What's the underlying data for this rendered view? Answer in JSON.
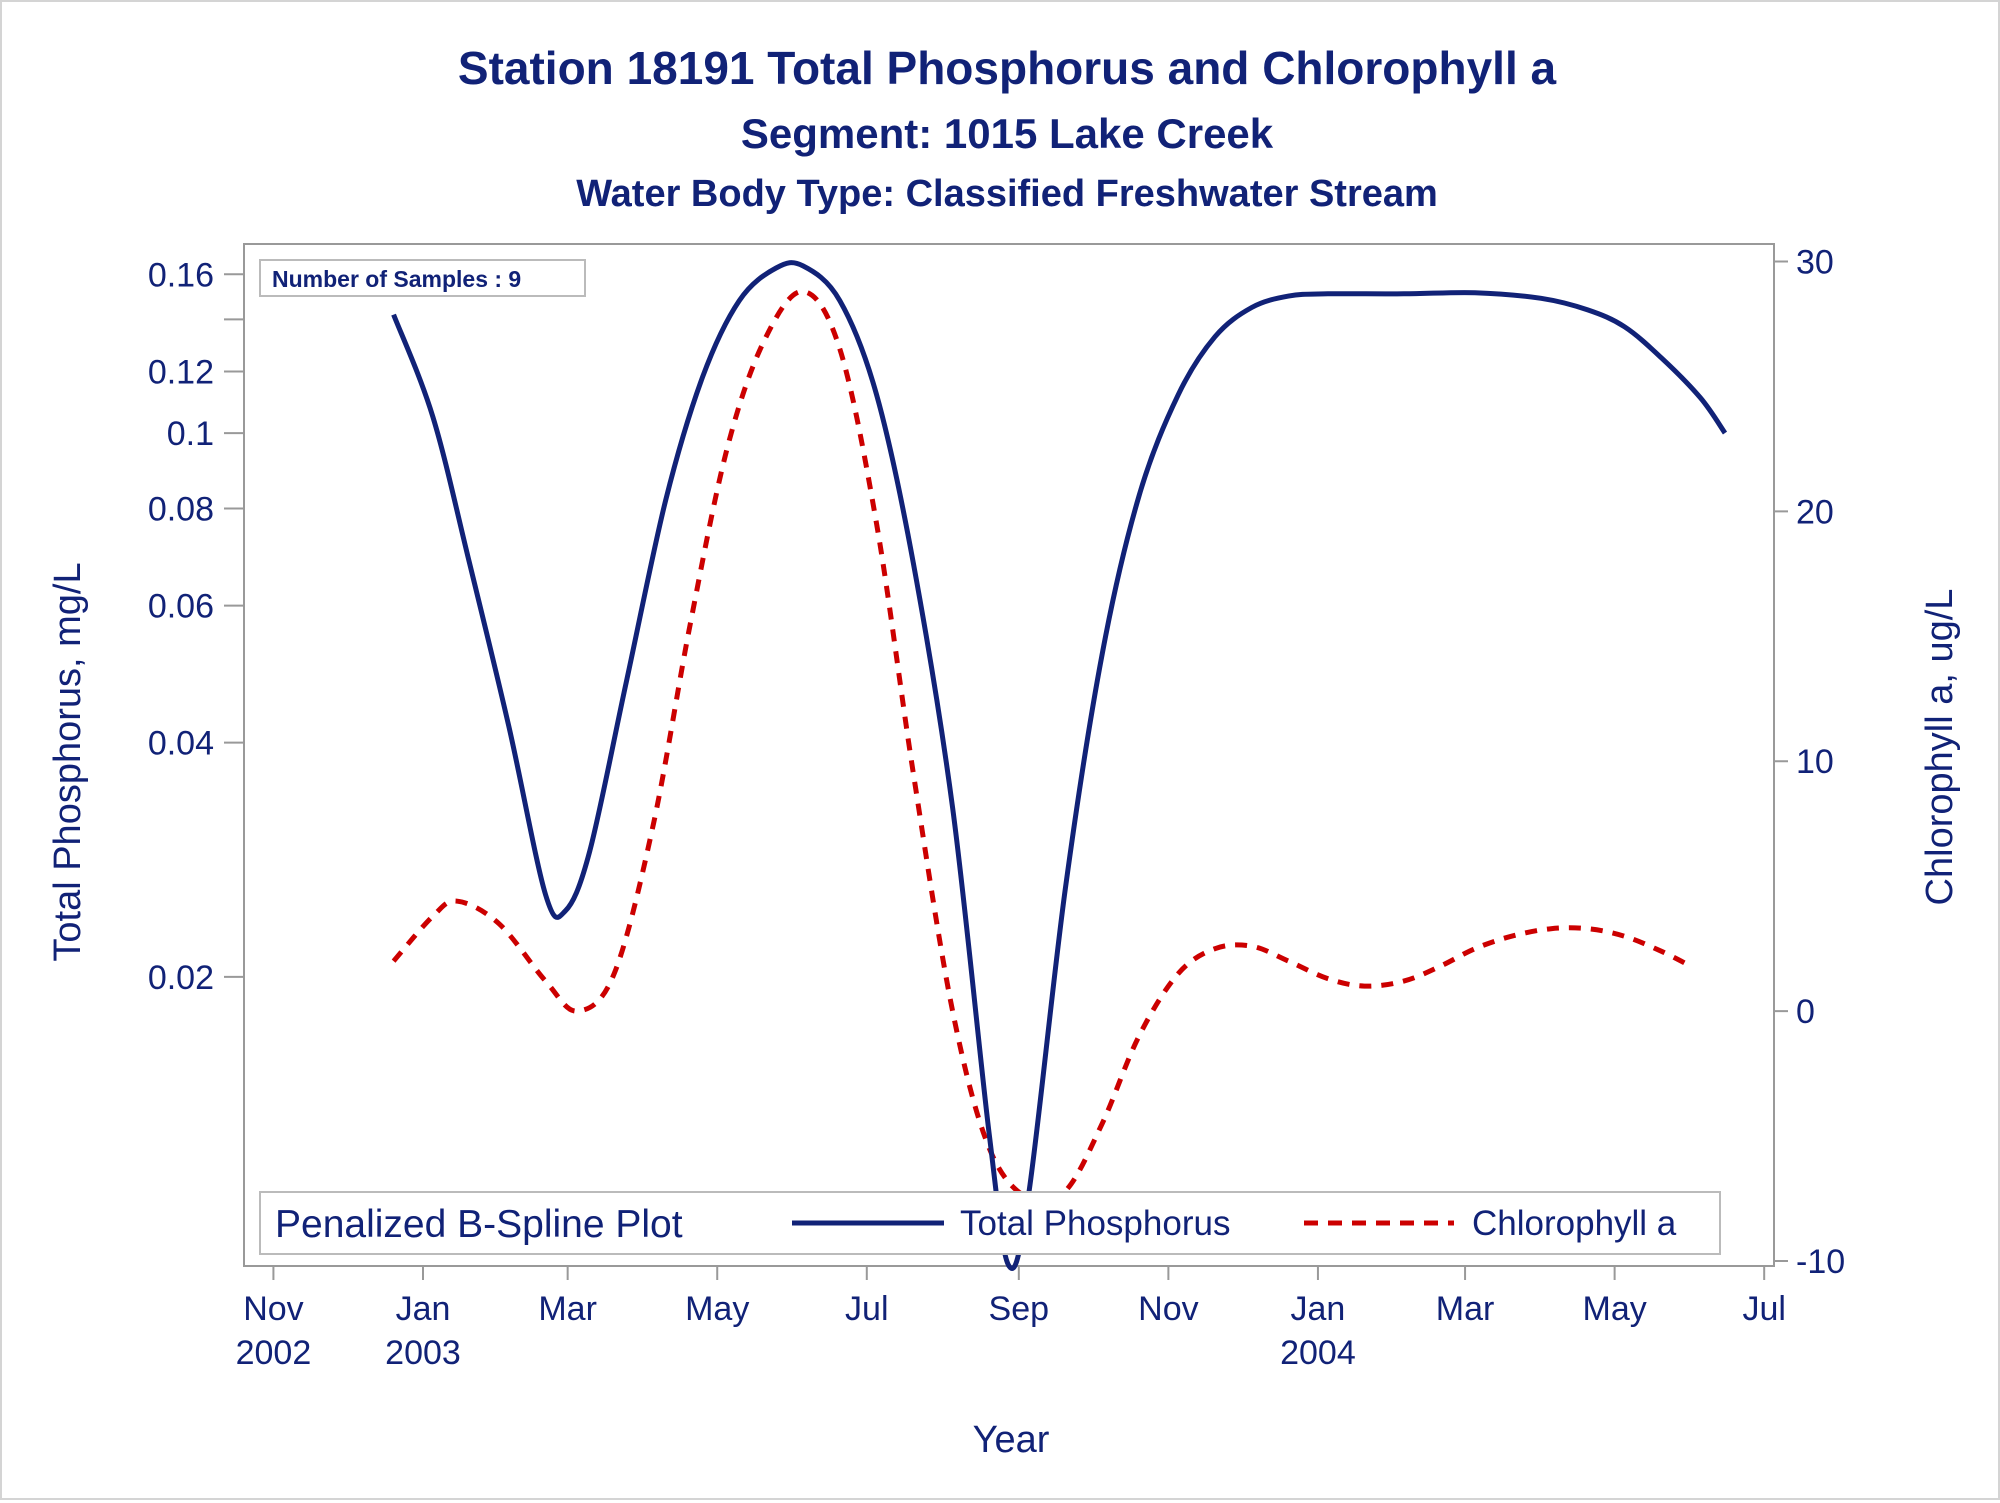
{
  "titles": {
    "line1": "Station 18191  Total Phosphorus and Chlorophyll a",
    "line2": "Segment: 1015  Lake Creek",
    "line3": "Water Body Type: Classified Freshwater Stream"
  },
  "inset_text": "Number of Samples : 9",
  "legend": {
    "title": "Penalized B-Spline Plot",
    "items": [
      {
        "label": "Total Phosphorus",
        "color": "#112277",
        "style": "solid"
      },
      {
        "label": "Chlorophyll a",
        "color": "#cc0000",
        "style": "dashed"
      }
    ]
  },
  "colors": {
    "accent": "#112277",
    "series_tp": "#112277",
    "series_chl": "#cc0000",
    "frame": "#999999"
  },
  "chart_data": {
    "type": "line",
    "xlabel": "Year",
    "ylabel": "Total Phosphorus, mg/L",
    "y2label": "Chlorophyll a, ug/L",
    "x_range": [
      "2002-10-20",
      "2004-07-05"
    ],
    "y_scale": "log",
    "ylim": [
      0.0085,
      0.175
    ],
    "y2lim": [
      -10.2,
      30.7
    ],
    "x_ticks": [
      {
        "date": "2002-11-01",
        "label": "Nov",
        "year": "2002"
      },
      {
        "date": "2003-01-01",
        "label": "Jan",
        "year": "2003"
      },
      {
        "date": "2003-03-01",
        "label": "Mar",
        "year": ""
      },
      {
        "date": "2003-05-01",
        "label": "May",
        "year": ""
      },
      {
        "date": "2003-07-01",
        "label": "Jul",
        "year": ""
      },
      {
        "date": "2003-09-01",
        "label": "Sep",
        "year": ""
      },
      {
        "date": "2003-11-01",
        "label": "Nov",
        "year": ""
      },
      {
        "date": "2004-01-01",
        "label": "Jan",
        "year": "2004"
      },
      {
        "date": "2004-03-01",
        "label": "Mar",
        "year": ""
      },
      {
        "date": "2004-05-01",
        "label": "May",
        "year": ""
      },
      {
        "date": "2004-07-01",
        "label": "Jul",
        "year": ""
      }
    ],
    "y_ticks": [
      {
        "value": 0.02,
        "label": "0.02"
      },
      {
        "value": 0.04,
        "label": "0.04"
      },
      {
        "value": 0.06,
        "label": "0.06"
      },
      {
        "value": 0.08,
        "label": "0.08"
      },
      {
        "value": 0.1,
        "label": "0.1"
      },
      {
        "value": 0.12,
        "label": "0.12"
      },
      {
        "value": 0.14,
        "label": ""
      },
      {
        "value": 0.16,
        "label": "0.16"
      }
    ],
    "y2_ticks": [
      {
        "value": -10,
        "label": "-10"
      },
      {
        "value": 0,
        "label": "0"
      },
      {
        "value": 10,
        "label": "10"
      },
      {
        "value": 20,
        "label": "20"
      },
      {
        "value": 30,
        "label": "30"
      }
    ],
    "series": [
      {
        "name": "Total Phosphorus",
        "axis": "y",
        "points": [
          [
            "2002-12-20",
            0.142
          ],
          [
            "2003-01-05",
            0.105
          ],
          [
            "2003-01-20",
            0.068
          ],
          [
            "2003-02-05",
            0.042
          ],
          [
            "2003-02-20",
            0.0255
          ],
          [
            "2003-02-28",
            0.0243
          ],
          [
            "2003-03-10",
            0.029
          ],
          [
            "2003-03-25",
            0.048
          ],
          [
            "2003-04-10",
            0.082
          ],
          [
            "2003-04-25",
            0.118
          ],
          [
            "2003-05-10",
            0.148
          ],
          [
            "2003-05-25",
            0.163
          ],
          [
            "2003-06-05",
            0.164
          ],
          [
            "2003-06-20",
            0.148
          ],
          [
            "2003-07-05",
            0.112
          ],
          [
            "2003-07-20",
            0.068
          ],
          [
            "2003-08-05",
            0.033
          ],
          [
            "2003-08-20",
            0.0125
          ],
          [
            "2003-08-28",
            0.0085
          ],
          [
            "2003-09-05",
            0.0105
          ],
          [
            "2003-09-20",
            0.026
          ],
          [
            "2003-10-05",
            0.052
          ],
          [
            "2003-10-20",
            0.083
          ],
          [
            "2003-11-05",
            0.112
          ],
          [
            "2003-11-20",
            0.133
          ],
          [
            "2003-12-05",
            0.145
          ],
          [
            "2003-12-20",
            0.15
          ],
          [
            "2004-01-05",
            0.151
          ],
          [
            "2004-02-05",
            0.151
          ],
          [
            "2004-03-05",
            0.1515
          ],
          [
            "2004-04-01",
            0.149
          ],
          [
            "2004-04-20",
            0.144
          ],
          [
            "2004-05-05",
            0.137
          ],
          [
            "2004-05-20",
            0.125
          ],
          [
            "2004-06-05",
            0.111
          ],
          [
            "2004-06-15",
            0.1
          ]
        ]
      },
      {
        "name": "Chlorophyll a",
        "axis": "y2",
        "points": [
          [
            "2002-12-20",
            2.0
          ],
          [
            "2003-01-05",
            3.8
          ],
          [
            "2003-01-15",
            4.4
          ],
          [
            "2003-02-01",
            3.5
          ],
          [
            "2003-02-20",
            1.2
          ],
          [
            "2003-03-05",
            0.0
          ],
          [
            "2003-03-20",
            1.5
          ],
          [
            "2003-04-05",
            7.5
          ],
          [
            "2003-04-20",
            15.5
          ],
          [
            "2003-05-05",
            22.5
          ],
          [
            "2003-05-20",
            26.8
          ],
          [
            "2003-06-05",
            28.8
          ],
          [
            "2003-06-20",
            26.5
          ],
          [
            "2003-07-05",
            19.5
          ],
          [
            "2003-07-20",
            9.5
          ],
          [
            "2003-08-05",
            0.0
          ],
          [
            "2003-08-20",
            -5.5
          ],
          [
            "2003-09-05",
            -7.5
          ],
          [
            "2003-09-20",
            -7.2
          ],
          [
            "2003-10-05",
            -4.5
          ],
          [
            "2003-10-20",
            -1.0
          ],
          [
            "2003-11-05",
            1.5
          ],
          [
            "2003-11-20",
            2.5
          ],
          [
            "2003-12-05",
            2.6
          ],
          [
            "2003-12-20",
            2.0
          ],
          [
            "2004-01-05",
            1.3
          ],
          [
            "2004-01-20",
            1.0
          ],
          [
            "2004-02-05",
            1.2
          ],
          [
            "2004-02-20",
            1.8
          ],
          [
            "2004-03-05",
            2.5
          ],
          [
            "2004-03-20",
            3.0
          ],
          [
            "2004-04-05",
            3.3
          ],
          [
            "2004-04-20",
            3.3
          ],
          [
            "2004-05-05",
            3.0
          ],
          [
            "2004-05-20",
            2.4
          ],
          [
            "2004-06-01",
            1.8
          ]
        ]
      }
    ]
  }
}
